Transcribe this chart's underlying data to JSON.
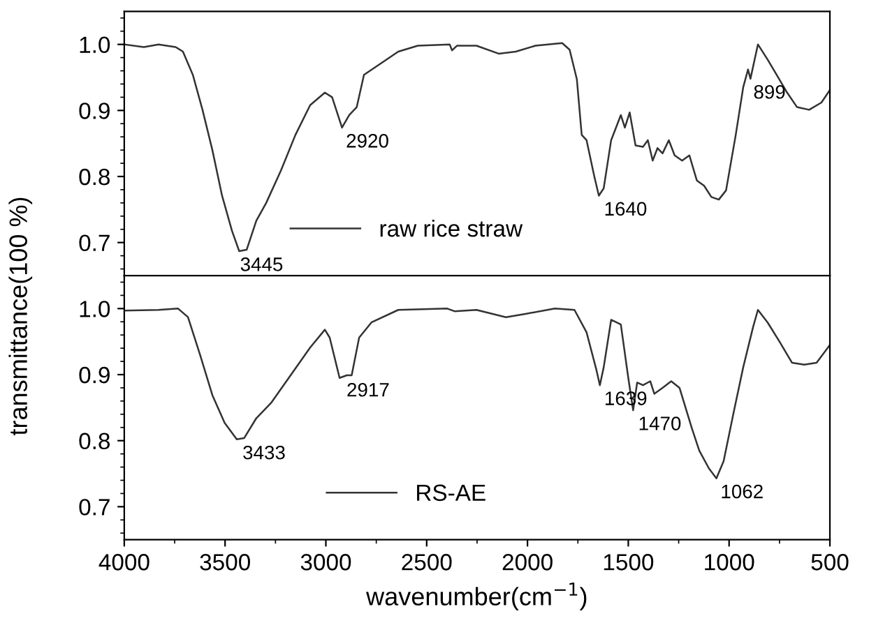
{
  "chart_data": [
    {
      "type": "line",
      "ylabel": "transmittance(100 %)",
      "tick_labels": "y",
      "legend": "bottom",
      "grid": false,
      "xlim": [
        4000,
        500
      ],
      "ylim": [
        0.65,
        1.05
      ],
      "yticks": [
        {
          "value": 0.7,
          "label": "0.7"
        },
        {
          "value": 0.8,
          "label": "0.8"
        },
        {
          "value": 0.9,
          "label": "0.9"
        },
        {
          "value": 1.0,
          "label": "1.0"
        }
      ],
      "series": [
        {
          "name": "raw rice straw",
          "color": "#333333",
          "x": [
            4000,
            3903,
            3830,
            3745,
            3709,
            3660,
            3612,
            3563,
            3515,
            3466,
            3430,
            3393,
            3345,
            3296,
            3223,
            3151,
            3078,
            3005,
            2969,
            2920,
            2884,
            2847,
            2811,
            2738,
            2641,
            2544,
            2386,
            2374,
            2350,
            2253,
            2143,
            2058,
            1961,
            1828,
            1791,
            1755,
            1731,
            1707,
            1670,
            1646,
            1622,
            1585,
            1537,
            1517,
            1493,
            1464,
            1427,
            1403,
            1379,
            1355,
            1330,
            1299,
            1270,
            1233,
            1197,
            1160,
            1124,
            1088,
            1051,
            1015,
            967,
            930,
            906,
            894,
            857,
            809,
            772,
            712,
            663,
            603,
            542,
            500
          ],
          "values": [
            1.0,
            0.996,
            1.0,
            0.996,
            0.989,
            0.954,
            0.901,
            0.84,
            0.771,
            0.718,
            0.687,
            0.689,
            0.733,
            0.76,
            0.809,
            0.863,
            0.908,
            0.927,
            0.92,
            0.874,
            0.893,
            0.905,
            0.954,
            0.969,
            0.989,
            0.998,
            1.0,
            0.991,
            0.998,
            0.998,
            0.986,
            0.989,
            0.998,
            1.002,
            0.992,
            0.947,
            0.863,
            0.855,
            0.802,
            0.771,
            0.782,
            0.855,
            0.893,
            0.874,
            0.897,
            0.847,
            0.845,
            0.855,
            0.824,
            0.843,
            0.835,
            0.855,
            0.832,
            0.824,
            0.832,
            0.794,
            0.786,
            0.769,
            0.765,
            0.779,
            0.863,
            0.935,
            0.962,
            0.948,
            1.0,
            0.977,
            0.958,
            0.927,
            0.905,
            0.901,
            0.912,
            0.931
          ]
        }
      ],
      "annotations": [
        {
          "text": "3445",
          "x": 3445,
          "y": 0.687
        },
        {
          "text": "2920",
          "x": 2920,
          "y": 0.874
        },
        {
          "text": "1640",
          "x": 1640,
          "y": 0.771
        },
        {
          "text": "899",
          "x": 899,
          "y": 0.948
        }
      ]
    },
    {
      "type": "line",
      "xlabel": "wavenumber(cm$^{−1}$)",
      "legend": "bottom",
      "grid": false,
      "xlim": [
        4000,
        500
      ],
      "xticks": [
        4000,
        3500,
        3000,
        2500,
        2000,
        1500,
        1000,
        500
      ],
      "ylim": [
        0.65,
        1.05
      ],
      "yticks": [
        {
          "value": 0.7,
          "label": "0.7"
        },
        {
          "value": 0.8,
          "label": "0.8"
        },
        {
          "value": 0.9,
          "label": "0.9"
        },
        {
          "value": 1.0,
          "label": "1.0"
        }
      ],
      "series": [
        {
          "name": "RS-AE",
          "color": "#333333",
          "x": [
            4000,
            3830,
            3733,
            3684,
            3624,
            3563,
            3502,
            3442,
            3405,
            3345,
            3272,
            3175,
            3078,
            3005,
            2981,
            2932,
            2896,
            2872,
            2835,
            2774,
            2641,
            2398,
            2362,
            2253,
            2107,
            2010,
            1864,
            1767,
            1707,
            1658,
            1641,
            1622,
            1585,
            1537,
            1500,
            1476,
            1456,
            1427,
            1391,
            1371,
            1330,
            1287,
            1246,
            1185,
            1148,
            1100,
            1063,
            1027,
            978,
            930,
            881,
            857,
            809,
            748,
            688,
            627,
            566,
            500
          ],
          "values": [
            0.997,
            0.998,
            1.0,
            0.987,
            0.93,
            0.869,
            0.827,
            0.802,
            0.804,
            0.834,
            0.857,
            0.899,
            0.941,
            0.968,
            0.956,
            0.895,
            0.899,
            0.899,
            0.956,
            0.979,
            0.998,
            1.0,
            0.996,
            0.998,
            0.987,
            0.992,
            1.0,
            0.998,
            0.964,
            0.907,
            0.884,
            0.911,
            0.983,
            0.976,
            0.895,
            0.846,
            0.888,
            0.884,
            0.89,
            0.871,
            0.88,
            0.89,
            0.88,
            0.819,
            0.785,
            0.758,
            0.743,
            0.769,
            0.842,
            0.911,
            0.972,
            0.998,
            0.979,
            0.949,
            0.918,
            0.915,
            0.918,
            0.945
          ]
        }
      ],
      "annotations": [
        {
          "text": "3433",
          "x": 3433,
          "y": 0.802
        },
        {
          "text": "2917",
          "x": 2917,
          "y": 0.897
        },
        {
          "text": "1639",
          "x": 1639,
          "y": 0.884
        },
        {
          "text": "1470",
          "x": 1470,
          "y": 0.846
        },
        {
          "text": "1062",
          "x": 1062,
          "y": 0.743
        }
      ]
    }
  ]
}
